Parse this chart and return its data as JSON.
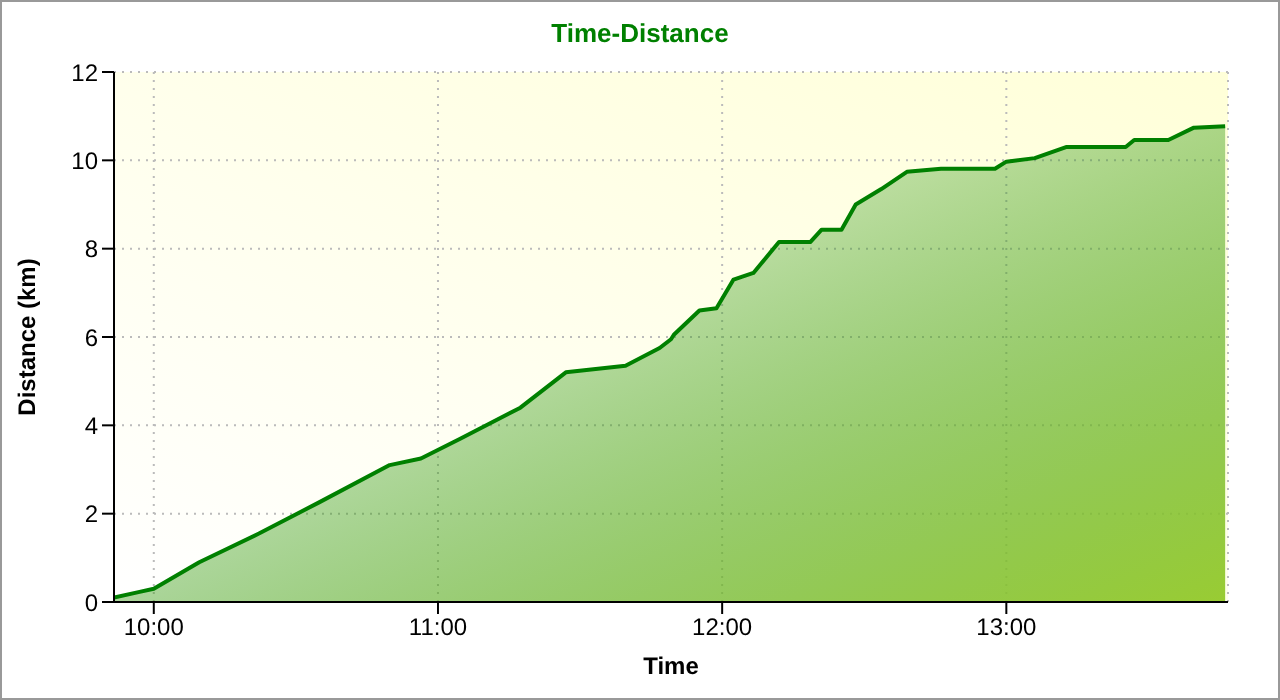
{
  "chart_data": {
    "type": "area",
    "title": "Time-Distance",
    "xlabel": "Time",
    "ylabel": "Distance (km)",
    "x": [
      9.86,
      9.95,
      10.0,
      10.16,
      10.37,
      10.58,
      10.83,
      10.94,
      11.08,
      11.29,
      11.45,
      11.66,
      11.78,
      11.82,
      11.83,
      11.92,
      11.98,
      12.04,
      12.11,
      12.2,
      12.31,
      12.35,
      12.42,
      12.47,
      12.56,
      12.65,
      12.77,
      12.96,
      13.0,
      13.1,
      13.21,
      13.42,
      13.45,
      13.57,
      13.66,
      13.77
    ],
    "series": [
      {
        "color": "#008000",
        "values": [
          0.1,
          0.23,
          0.3,
          0.9,
          1.55,
          2.25,
          3.1,
          3.25,
          3.7,
          4.4,
          5.2,
          5.35,
          5.75,
          5.95,
          6.05,
          6.6,
          6.65,
          7.3,
          7.45,
          8.15,
          8.15,
          8.43,
          8.43,
          9.0,
          9.35,
          9.74,
          9.81,
          9.81,
          9.97,
          10.05,
          10.3,
          10.3,
          10.46,
          10.46,
          10.74,
          10.77
        ]
      }
    ],
    "xlim": [
      9.86,
      13.78
    ],
    "xticks": [
      {
        "value": 10,
        "label": "10:00"
      },
      {
        "value": 11,
        "label": "11:00"
      },
      {
        "value": 12,
        "label": "12:00"
      },
      {
        "value": 13,
        "label": "13:00"
      }
    ],
    "ylim": [
      0,
      12
    ],
    "yticks": [
      0,
      2,
      4,
      6,
      8,
      10,
      12
    ],
    "grid": true
  }
}
